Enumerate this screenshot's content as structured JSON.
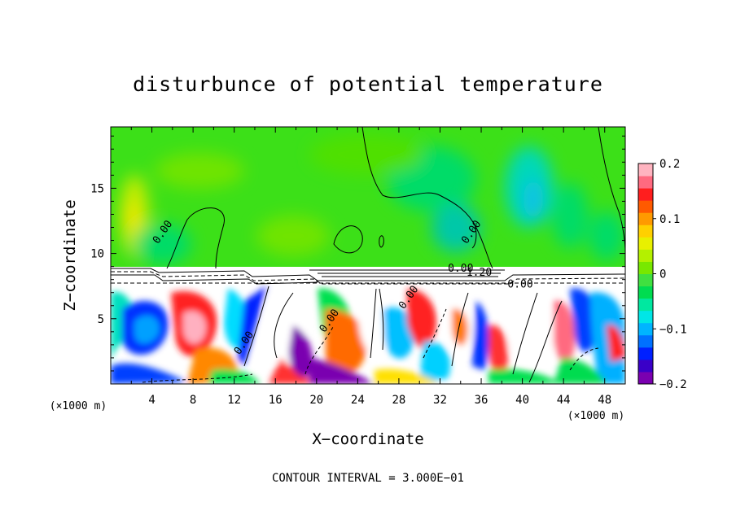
{
  "chart_data": {
    "type": "heatmap",
    "title": "disturbunce of potential temperature",
    "xlabel": "X−coordinate",
    "ylabel": "Z−coordinate",
    "x_unit": "(×1000 m)",
    "z_unit": "(×1000 m)",
    "xlim": [
      0,
      50
    ],
    "ylim": [
      0,
      19.7
    ],
    "x_ticks": [
      4,
      8,
      12,
      16,
      20,
      24,
      28,
      32,
      36,
      40,
      44,
      48
    ],
    "x_tick_labels": [
      "4",
      "8",
      "12",
      "16",
      "20",
      "24",
      "28",
      "32",
      "36",
      "40",
      "44",
      "48"
    ],
    "y_ticks": [
      5,
      10,
      15
    ],
    "y_tick_labels": [
      "5",
      "10",
      "15"
    ],
    "colorbar": {
      "range": [
        -0.2,
        0.2
      ],
      "ticks": [
        -0.2,
        -0.1,
        0,
        0.1,
        0.2
      ],
      "tick_labels": [
        "−0.2",
        "−0.1",
        "0",
        "0.1",
        "0.2"
      ],
      "colors": [
        "#7a00b0",
        "#3a00c8",
        "#0020ff",
        "#0070ff",
        "#00b4ff",
        "#00e6e6",
        "#00e8a0",
        "#00dc50",
        "#40e040",
        "#78e800",
        "#b4f000",
        "#e8f000",
        "#ffd000",
        "#ff9a00",
        "#ff5a00",
        "#ff1e1e",
        "#ff6a80",
        "#ffb4c0"
      ]
    },
    "contour_interval_text": "CONTOUR INTERVAL = 3.000E−01",
    "contour_labels": [
      {
        "x": 5.3,
        "z": 11.5,
        "text": "0.00"
      },
      {
        "x": 35.3,
        "z": 11.5,
        "text": "0.00"
      },
      {
        "x": 34.0,
        "z": 8.6,
        "text": "0.00"
      },
      {
        "x": 35.8,
        "z": 8.3,
        "text": "1.20"
      },
      {
        "x": 29.2,
        "z": 6.5,
        "text": "0.00"
      },
      {
        "x": 39.8,
        "z": 7.4,
        "text": "0.00"
      },
      {
        "x": 21.5,
        "z": 4.7,
        "text": "0.00"
      },
      {
        "x": 13.2,
        "z": 3.0,
        "text": "0.00"
      }
    ]
  }
}
